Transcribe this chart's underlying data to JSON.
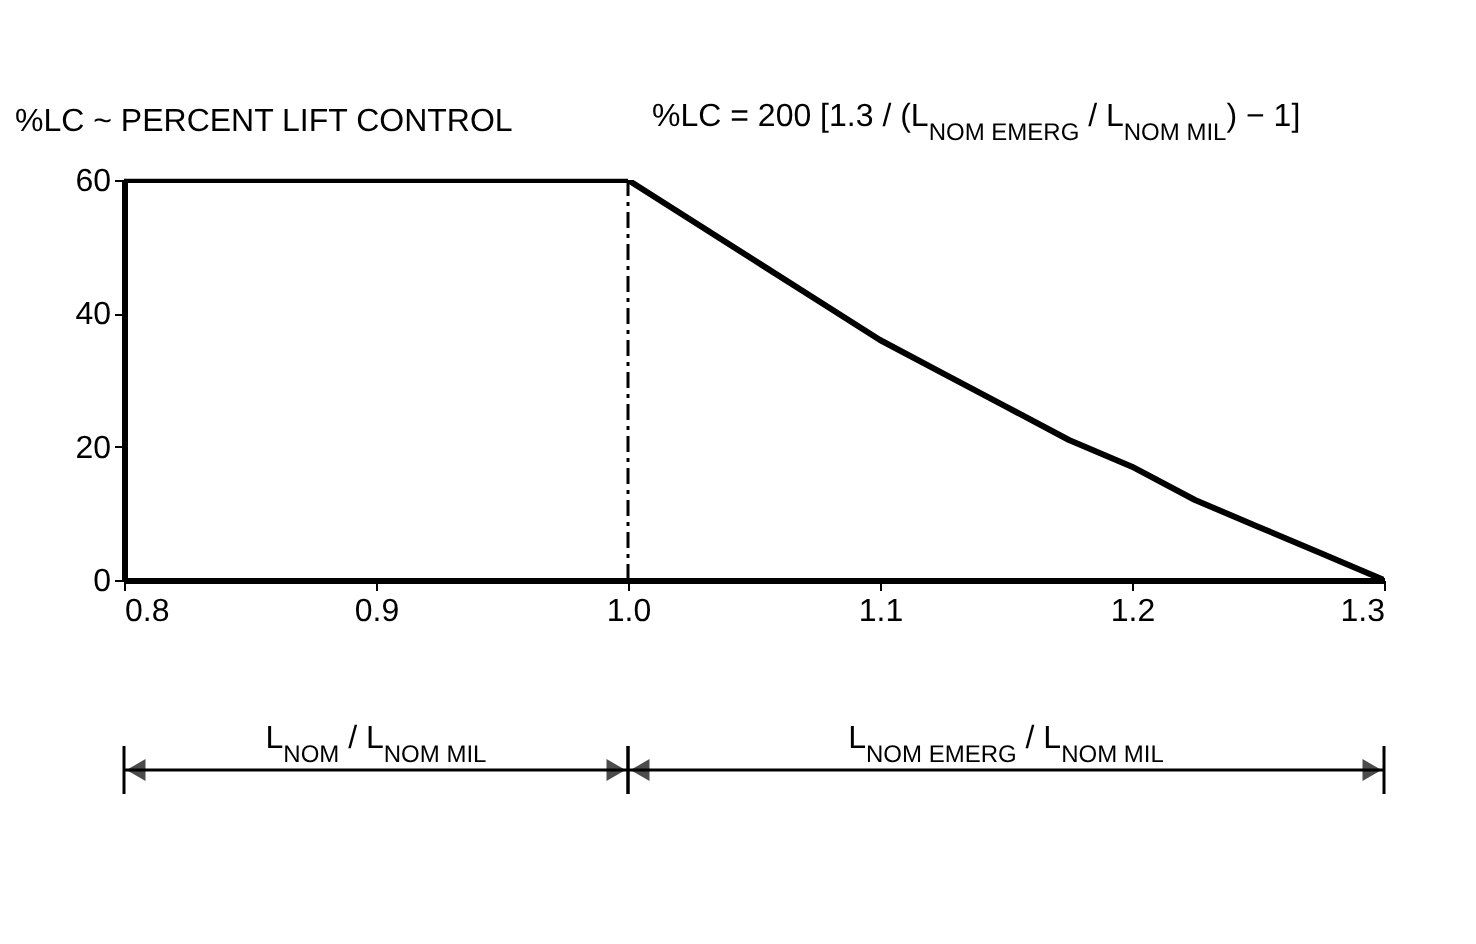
{
  "chart_data": {
    "type": "line",
    "ylabel": "%LC ~ PERCENT LIFT CONTROL",
    "x": [
      0.8,
      1.0,
      1.025,
      1.05,
      1.075,
      1.1,
      1.125,
      1.15,
      1.175,
      1.2,
      1.225,
      1.25,
      1.275,
      1.3
    ],
    "series": [
      {
        "color": "#000000",
        "values": [
          60,
          60,
          54,
          48,
          42,
          36,
          31,
          26,
          21,
          17,
          12,
          8,
          4,
          0
        ]
      }
    ],
    "xlim": [
      0.8,
      1.3
    ],
    "xticks": [
      0.8,
      0.9,
      {
        "value": 1,
        "label": "1.0"
      },
      1.1,
      1.2,
      1.3
    ],
    "ylim": [
      0,
      60
    ],
    "yticks": [
      0,
      20,
      40,
      60
    ],
    "grid": false,
    "ref_lines": [
      {
        "axis": "x",
        "value": 1,
        "line_style": "dashed",
        "color": "#000000"
      }
    ],
    "annotations": [
      {
        "text": "%LC = 200 [1.3 / (L$_{NOM EMERG}$ / L$_{NOM MIL}$) − 1]",
        "x": 1,
        "y": 60
      },
      "L$_{NOM}$ / L$_{NOM MIL}$",
      "L$_{NOM EMERG}$ / L$_{NOM MIL}$"
    ]
  }
}
